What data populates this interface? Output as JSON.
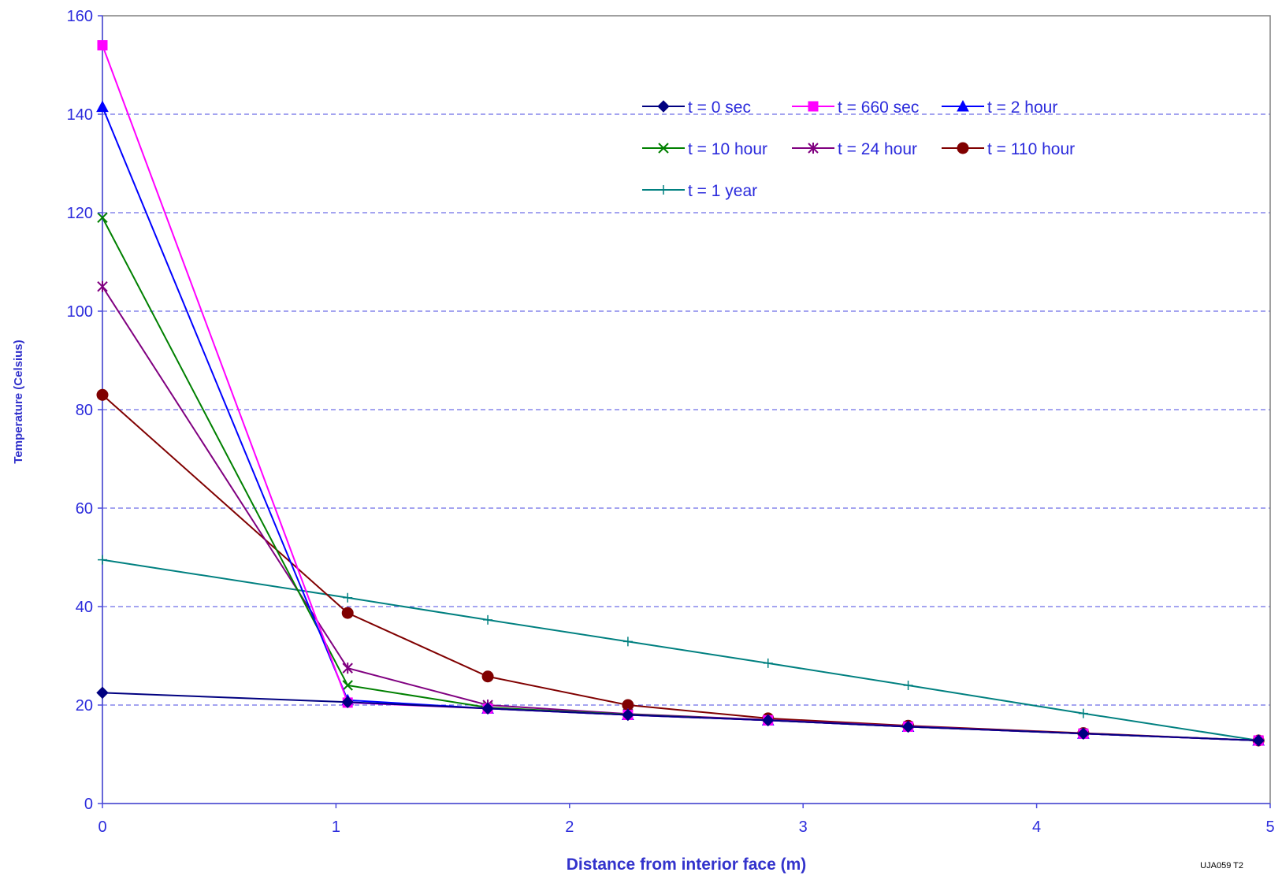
{
  "chart_data": {
    "type": "line",
    "title": "",
    "xlabel": "Distance from interior face (m)",
    "ylabel": "Temperature (Celsius)",
    "xlim": [
      0,
      5
    ],
    "ylim": [
      0,
      160
    ],
    "x_ticks": [
      0,
      1,
      2,
      3,
      4,
      5
    ],
    "y_ticks": [
      0,
      20,
      40,
      60,
      80,
      100,
      120,
      140,
      160
    ],
    "grid": "horizontal dashed",
    "legend_position": "top-right",
    "x": [
      0,
      1.05,
      1.65,
      2.25,
      2.85,
      3.45,
      4.2,
      4.95
    ],
    "series": [
      {
        "name": "t = 0 sec",
        "color": "#000080",
        "marker": "diamond",
        "values": [
          22.5,
          20.6,
          19.3,
          18.0,
          16.9,
          15.6,
          14.2,
          12.8
        ]
      },
      {
        "name": "t = 660 sec",
        "color": "#ff00ff",
        "marker": "square",
        "values": [
          154,
          20.5,
          19.3,
          18.0,
          16.9,
          15.6,
          14.2,
          12.8
        ]
      },
      {
        "name": "t = 2 hour",
        "color": "#0000ff",
        "marker": "triangle",
        "values": [
          141.5,
          21.0,
          19.3,
          18.0,
          16.9,
          15.6,
          14.2,
          12.8
        ]
      },
      {
        "name": "t = 10 hour",
        "color": "#008000",
        "marker": "x",
        "values": [
          119,
          24.0,
          19.5,
          18.1,
          16.9,
          15.6,
          14.2,
          12.8
        ]
      },
      {
        "name": "t = 24 hour",
        "color": "#800080",
        "marker": "asterisk",
        "values": [
          105,
          27.5,
          20.0,
          18.2,
          17.0,
          15.7,
          14.2,
          12.8
        ]
      },
      {
        "name": "t = 110 hour",
        "color": "#800000",
        "marker": "circle",
        "values": [
          83,
          38.7,
          25.8,
          20.0,
          17.3,
          15.8,
          14.3,
          12.8
        ]
      },
      {
        "name": "t = 1 year",
        "color": "#008080",
        "marker": "plus",
        "values": [
          49.5,
          41.8,
          37.3,
          32.9,
          28.5,
          24.0,
          18.3,
          12.8
        ]
      }
    ]
  },
  "corner_note": "UJA059 T2"
}
